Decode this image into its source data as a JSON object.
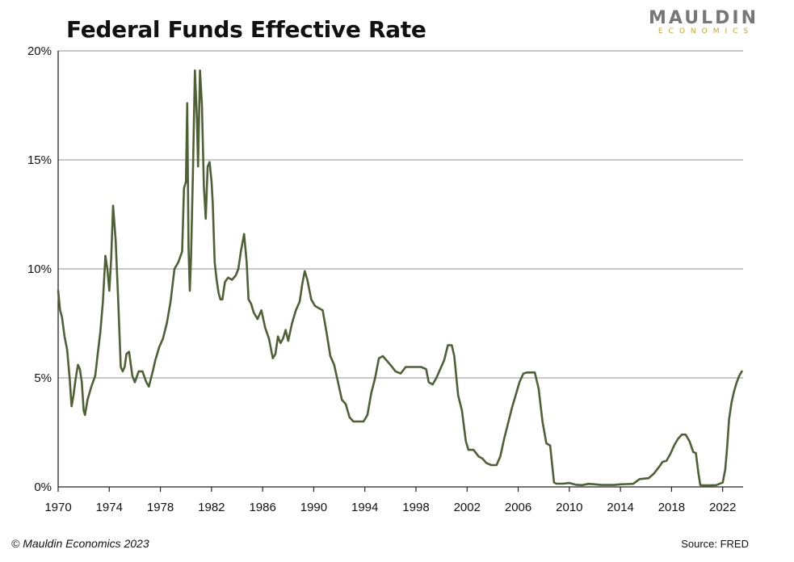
{
  "header": {
    "title": "Federal Funds Effective Rate",
    "brand_name": "MAULDIN",
    "brand_sub": "ECONOMICS"
  },
  "footer": {
    "copyright": "© Mauldin Economics 2023",
    "source": "Source: FRED"
  },
  "colors": {
    "line": "#4e6034",
    "grid": "#a6a6a6",
    "axis": "#222222",
    "brand_gray": "#777777",
    "brand_gold": "#c9a227"
  },
  "chart_data": {
    "type": "line",
    "title": "Federal Funds Effective Rate",
    "xlabel": "",
    "ylabel": "",
    "xlim": [
      1970,
      2023.6
    ],
    "ylim": [
      0,
      20
    ],
    "grid": true,
    "x_ticks": [
      1970,
      1974,
      1978,
      1982,
      1986,
      1990,
      1994,
      1998,
      2002,
      2006,
      2010,
      2014,
      2018,
      2022
    ],
    "x_tick_labels": [
      "1970",
      "1974",
      "1978",
      "1982",
      "1986",
      "1990",
      "1994",
      "1998",
      "2002",
      "2006",
      "2010",
      "2014",
      "2018",
      "2022"
    ],
    "y_ticks": [
      0,
      5,
      10,
      15,
      20
    ],
    "y_tick_labels": [
      "0%",
      "5%",
      "10%",
      "15%",
      "20%"
    ],
    "series": [
      {
        "x": [
          1970.0,
          1970.15,
          1970.3,
          1970.5,
          1970.7,
          1970.9,
          1971.05,
          1971.2,
          1971.35,
          1971.55,
          1971.7,
          1971.85,
          1972.0,
          1972.1,
          1972.3,
          1972.6,
          1972.9,
          1973.1,
          1973.3,
          1973.5,
          1973.7,
          1973.85,
          1974.0,
          1974.15,
          1974.3,
          1974.5,
          1974.7,
          1974.9,
          1975.05,
          1975.2,
          1975.35,
          1975.55,
          1975.8,
          1976.0,
          1976.3,
          1976.6,
          1976.9,
          1977.1,
          1977.4,
          1977.6,
          1977.9,
          1978.2,
          1978.5,
          1978.8,
          1979.1,
          1979.4,
          1979.7,
          1979.85,
          1980.0,
          1980.1,
          1980.2,
          1980.3,
          1980.4,
          1980.55,
          1980.7,
          1980.85,
          1980.95,
          1981.1,
          1981.25,
          1981.4,
          1981.55,
          1981.7,
          1981.85,
          1982.0,
          1982.1,
          1982.25,
          1982.4,
          1982.55,
          1982.7,
          1982.85,
          1983.05,
          1983.3,
          1983.6,
          1983.9,
          1984.1,
          1984.3,
          1984.55,
          1984.75,
          1984.9,
          1985.1,
          1985.3,
          1985.6,
          1985.9,
          1986.2,
          1986.5,
          1986.8,
          1987.0,
          1987.2,
          1987.4,
          1987.6,
          1987.8,
          1988.0,
          1988.3,
          1988.6,
          1988.9,
          1989.1,
          1989.3,
          1989.5,
          1989.8,
          1990.1,
          1990.4,
          1990.7,
          1991.0,
          1991.3,
          1991.6,
          1991.9,
          1992.2,
          1992.5,
          1992.8,
          1993.1,
          1993.5,
          1993.9,
          1994.2,
          1994.5,
          1994.8,
          1995.1,
          1995.4,
          1995.7,
          1996.0,
          1996.4,
          1996.8,
          1997.2,
          1997.6,
          1998.0,
          1998.4,
          1998.8,
          1999.0,
          1999.3,
          1999.6,
          1999.9,
          2000.2,
          2000.5,
          2000.8,
          2001.0,
          2001.3,
          2001.6,
          2001.9,
          2002.1,
          2002.5,
          2002.9,
          2003.2,
          2003.5,
          2003.9,
          2004.3,
          2004.6,
          2004.9,
          2005.2,
          2005.5,
          2005.8,
          2006.1,
          2006.4,
          2006.7,
          2007.0,
          2007.3,
          2007.6,
          2007.9,
          2008.2,
          2008.5,
          2008.8,
          2009.0,
          2009.5,
          2010.0,
          2010.5,
          2011.0,
          2011.5,
          2012.0,
          2012.5,
          2013.0,
          2013.5,
          2014.0,
          2014.5,
          2015.0,
          2015.5,
          2015.9,
          2016.2,
          2016.6,
          2017.0,
          2017.3,
          2017.6,
          2017.9,
          2018.2,
          2018.5,
          2018.8,
          2019.1,
          2019.4,
          2019.7,
          2019.9,
          2020.1,
          2020.25,
          2020.5,
          2021.0,
          2021.5,
          2022.0,
          2022.2,
          2022.35,
          2022.5,
          2022.7,
          2022.9,
          2023.1,
          2023.3,
          2023.5
        ],
        "y": [
          9.0,
          8.1,
          7.8,
          6.9,
          6.3,
          5.0,
          3.7,
          4.2,
          4.9,
          5.6,
          5.4,
          4.8,
          3.5,
          3.3,
          4.0,
          4.6,
          5.1,
          6.1,
          7.1,
          8.5,
          10.6,
          10.0,
          9.0,
          10.5,
          12.9,
          11.3,
          8.5,
          5.5,
          5.3,
          5.5,
          6.1,
          6.2,
          5.1,
          4.8,
          5.3,
          5.3,
          4.8,
          4.6,
          5.3,
          5.8,
          6.4,
          6.8,
          7.5,
          8.5,
          10.0,
          10.3,
          10.8,
          13.7,
          14.0,
          17.6,
          11.0,
          9.0,
          10.5,
          14.5,
          19.1,
          17.0,
          14.7,
          19.1,
          17.5,
          13.8,
          12.3,
          14.7,
          14.9,
          14.0,
          13.0,
          10.3,
          9.5,
          8.9,
          8.6,
          8.6,
          9.4,
          9.6,
          9.5,
          9.7,
          10.0,
          10.8,
          11.6,
          10.3,
          8.6,
          8.4,
          8.0,
          7.7,
          8.1,
          7.3,
          6.8,
          5.9,
          6.1,
          6.9,
          6.6,
          6.8,
          7.2,
          6.7,
          7.5,
          8.1,
          8.5,
          9.3,
          9.9,
          9.5,
          8.6,
          8.3,
          8.2,
          8.1,
          7.1,
          6.0,
          5.6,
          4.8,
          4.0,
          3.8,
          3.2,
          3.0,
          3.0,
          3.0,
          3.3,
          4.3,
          5.0,
          5.9,
          6.0,
          5.8,
          5.6,
          5.3,
          5.2,
          5.5,
          5.5,
          5.5,
          5.5,
          5.4,
          4.8,
          4.7,
          5.0,
          5.4,
          5.8,
          6.5,
          6.5,
          6.0,
          4.2,
          3.5,
          2.1,
          1.7,
          1.7,
          1.4,
          1.3,
          1.1,
          1.0,
          1.0,
          1.4,
          2.2,
          2.9,
          3.6,
          4.2,
          4.8,
          5.2,
          5.25,
          5.25,
          5.25,
          4.5,
          3.0,
          2.0,
          1.9,
          0.2,
          0.15,
          0.15,
          0.18,
          0.1,
          0.08,
          0.14,
          0.12,
          0.09,
          0.09,
          0.09,
          0.12,
          0.13,
          0.14,
          0.36,
          0.38,
          0.4,
          0.6,
          0.9,
          1.15,
          1.2,
          1.5,
          1.9,
          2.2,
          2.4,
          2.4,
          2.1,
          1.6,
          1.55,
          0.65,
          0.08,
          0.07,
          0.07,
          0.08,
          0.2,
          0.8,
          1.8,
          3.1,
          3.9,
          4.4,
          4.8,
          5.1,
          5.3
        ]
      }
    ]
  }
}
